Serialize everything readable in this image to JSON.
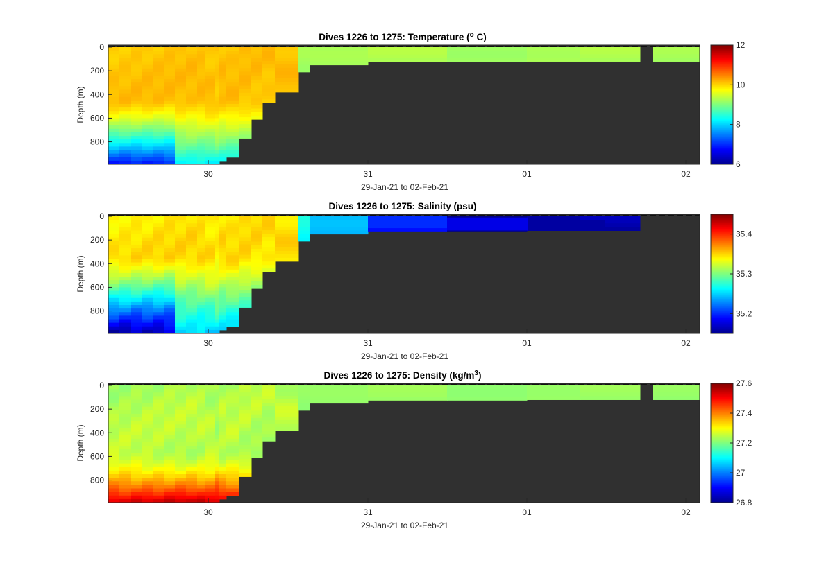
{
  "chart_data": [
    {
      "type": "heatmap",
      "title": "Dives 1226 to 1275: Temperature (",
      "title_super": "o",
      "title_tail": " C)",
      "xlabel": "29-Jan-21 to 02-Feb-21",
      "ylabel": "Depth (m)",
      "x_ticks": [
        "30",
        "31",
        "01",
        "02"
      ],
      "y_ticks": [
        "0",
        "200",
        "400",
        "600",
        "800"
      ],
      "xlim": [
        "29-Jan-21 13:40",
        "02-Feb-21 02:00"
      ],
      "ylim": [
        0,
        990
      ],
      "y_reversed": true,
      "colorbar": {
        "min": 6,
        "max": 12,
        "ticks": [
          "6",
          "8",
          "10",
          "12"
        ],
        "colormap": "jet"
      },
      "x_dives": [
        "29-Jan-21 13:40",
        "29-Jan-21 16:00",
        "29-Jan-21 18:00",
        "29-Jan-21 20:00",
        "29-Jan-21 22:00",
        "30-Jan-21 00:00",
        "30-Jan-21 02:00",
        "30-Jan-21 04:00",
        "30-Jan-21 06:00",
        "30-Jan-21 08:00",
        "30-Jan-21 10:00",
        "30-Jan-21 11:00",
        "30-Jan-21 12:00",
        "30-Jan-21 13:00",
        "30-Jan-21 14:00",
        "30-Jan-21 15:00",
        "30-Jan-21 16:00",
        "30-Jan-21 17:00",
        "30-Jan-21 18:00",
        "31-Jan-21 00:00",
        "31-Jan-21 12:00",
        "01-Feb-21 00:00",
        "01-Feb-21 08:00",
        "01-Feb-21 17:00",
        "01-Feb-21 18:00",
        "02-Feb-21 02:00"
      ],
      "upper_layer_value": 9.3,
      "shallow_layer_value": 10.1,
      "deep_layer_value": 10.2,
      "min_at_bottom": 6.8,
      "no_data_depth_m": [
        990,
        990,
        990,
        990,
        990,
        990,
        990,
        990,
        990,
        990,
        990,
        960,
        930,
        770,
        610,
        470,
        380,
        210,
        150,
        125,
        125,
        120,
        120,
        0,
        120,
        120
      ],
      "no_data_color": "#303030"
    },
    {
      "type": "heatmap",
      "title": "Dives 1226 to 1275: Salinity (psu)",
      "xlabel": "29-Jan-21 to 02-Feb-21",
      "ylabel": "Depth (m)",
      "x_ticks": [
        "30",
        "31",
        "01",
        "02"
      ],
      "y_ticks": [
        "0",
        "200",
        "400",
        "600",
        "800"
      ],
      "ylim": [
        0,
        990
      ],
      "y_reversed": true,
      "colorbar": {
        "min": 35.15,
        "max": 35.45,
        "ticks": [
          "35.2",
          "35.3",
          "35.4"
        ],
        "colormap": "jet"
      },
      "upper_layer_value_range": [
        35.29,
        35.16
      ],
      "shallow_layer_value": 35.35,
      "min_at_bottom": 35.17,
      "no_data_color": "#303030"
    },
    {
      "type": "heatmap",
      "title": "Dives 1226 to 1275: Density (kg/m",
      "title_super": "3",
      "title_tail": ")",
      "xlabel": "29-Jan-21 to 02-Feb-21",
      "ylabel": "Depth (m)",
      "x_ticks": [
        "30",
        "31",
        "01",
        "02"
      ],
      "y_ticks": [
        "0",
        "200",
        "400",
        "600",
        "800"
      ],
      "ylim": [
        0,
        990
      ],
      "y_reversed": true,
      "colorbar": {
        "min": 26.8,
        "max": 27.6,
        "ticks": [
          "26.8",
          "27",
          "27.2",
          "27.4",
          "27.6"
        ],
        "colormap": "jet"
      },
      "upper_layer_value": 27.22,
      "shallow_layer_value": 27.27,
      "max_at_bottom": 27.55,
      "no_data_color": "#303030"
    }
  ]
}
